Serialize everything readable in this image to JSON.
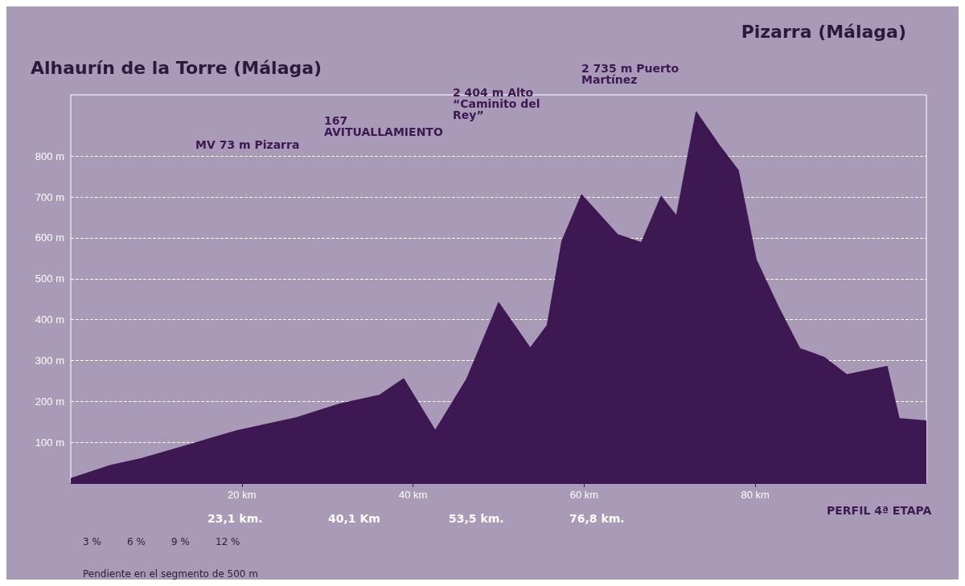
{
  "chart_data": {
    "type": "area",
    "title": "Alhaurín de la Torre (Málaga)",
    "subtitle": "Pizarra (Málaga)",
    "x": [
      0,
      4.6,
      8.3,
      13.9,
      19.4,
      26.4,
      31.5,
      36.1,
      38.9,
      42.6,
      46.3,
      50,
      53.7,
      55.7,
      57.4,
      59.7,
      63.9,
      66.7,
      69,
      70.8,
      73.1,
      75.9,
      78,
      80.1,
      82.9,
      85.2,
      88,
      90.7,
      95.4,
      96.8,
      100
    ],
    "series": [
      {
        "color": "#3d1852",
        "values": [
          11,
          43,
          60,
          94,
          128,
          160,
          194,
          215,
          255,
          128,
          255,
          441,
          330,
          386,
          591,
          705,
          608,
          588,
          701,
          653,
          908,
          823,
          765,
          546,
          422,
          329,
          308,
          265,
          285,
          158,
          152
        ]
      }
    ],
    "xlim": [
      0,
      100
    ],
    "xticks": [
      {
        "value": 20,
        "label": "20 km"
      },
      {
        "value": 40,
        "label": "40 km"
      },
      {
        "value": 60,
        "label": "60 km"
      },
      {
        "value": 80,
        "label": "80 km"
      }
    ],
    "ylim": [
      0,
      950
    ],
    "yticks": [
      {
        "value": 100,
        "label": "100 m"
      },
      {
        "value": 200,
        "label": "200 m"
      },
      {
        "value": 300,
        "label": "300 m"
      },
      {
        "value": 400,
        "label": "400 m"
      },
      {
        "value": 500,
        "label": "500 m"
      },
      {
        "value": 600,
        "label": "600 m"
      },
      {
        "value": 700,
        "label": "700 m"
      },
      {
        "value": 800,
        "label": "800 m"
      }
    ],
    "grid": "y",
    "annotations": [
      "MV 73 m Pizarra",
      "167 AVITUALLAMIENTO",
      "2 404 m Alto “Caminito del Rey”",
      "2 735 m Puerto Martínez",
      "23,1 km.",
      "40,1 Km",
      "53,5 km.",
      "76,8 km.",
      "PERFIL 4ª ETAPA",
      "3 %",
      "6 %",
      "9 %",
      "12 %",
      "Pendiente en el segmento de 500 m"
    ]
  }
}
